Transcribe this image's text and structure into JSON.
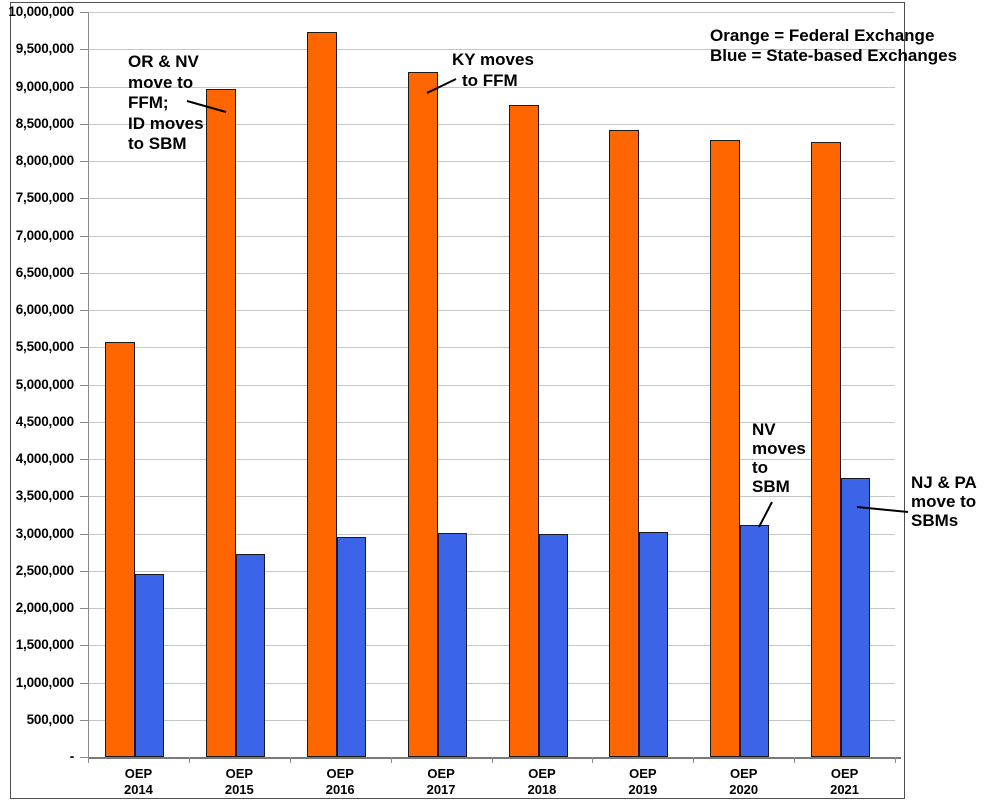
{
  "chart_data": {
    "type": "bar",
    "title": "",
    "legend_position": "top-right",
    "legend_lines": [
      "Orange = Federal Exchange",
      "Blue = State-based Exchanges"
    ],
    "categories": [
      "OEP 2014",
      "OEP 2015",
      "OEP 2016",
      "OEP 2017",
      "OEP 2018",
      "OEP 2019",
      "OEP 2020",
      "OEP 2021"
    ],
    "series": [
      {
        "name": "Federal Exchange",
        "color": "#FF6600",
        "values": [
          5570000,
          8960000,
          9730000,
          9200000,
          8750000,
          8410000,
          8280000,
          8250000
        ]
      },
      {
        "name": "State-based Exchanges",
        "color": "#3B64E8",
        "values": [
          2450000,
          2720000,
          2950000,
          3010000,
          3000000,
          3020000,
          3120000,
          3750000
        ]
      }
    ],
    "ylim": [
      0,
      10000000
    ],
    "ytick_interval": 500000,
    "ytick_labels_top_to_bottom": [
      "10,000,000",
      "9,500,000",
      "9,000,000",
      "8,500,000",
      "8,000,000",
      "7,500,000",
      "7,000,000",
      "6,500,000",
      "6,000,000",
      "5,500,000",
      "5,000,000",
      "4,500,000",
      "4,000,000",
      "3,500,000",
      "3,000,000",
      "2,500,000",
      "2,000,000",
      "1,500,000",
      "1,000,000",
      "500,000",
      "-"
    ],
    "grid": true,
    "annotations": [
      {
        "id": "or-nv",
        "lines": [
          "OR & NV",
          "move to",
          "FFM;",
          "ID moves",
          "to SBM"
        ],
        "points_to": "OEP 2015 Federal Exchange bar"
      },
      {
        "id": "ky",
        "lines": [
          "KY moves",
          "to FFM"
        ],
        "points_to": "OEP 2017 Federal Exchange bar"
      },
      {
        "id": "nv",
        "lines": [
          "NV",
          "moves",
          "to",
          "SBM"
        ],
        "points_to": "OEP 2020 State-based Exchanges bar"
      },
      {
        "id": "nj-pa",
        "lines": [
          "NJ & PA",
          "move to",
          "SBMs"
        ],
        "points_to": "OEP 2021 State-based Exchanges bar"
      }
    ],
    "colors": {
      "federal_bar": "#FF6600",
      "state_bar": "#3B64E8",
      "bar_outline": "#1a1a1a",
      "gridline": "#c6c6c6",
      "axis": "#8a8a8a",
      "figure_border": "#4f4f4f",
      "text": "#000000"
    }
  }
}
